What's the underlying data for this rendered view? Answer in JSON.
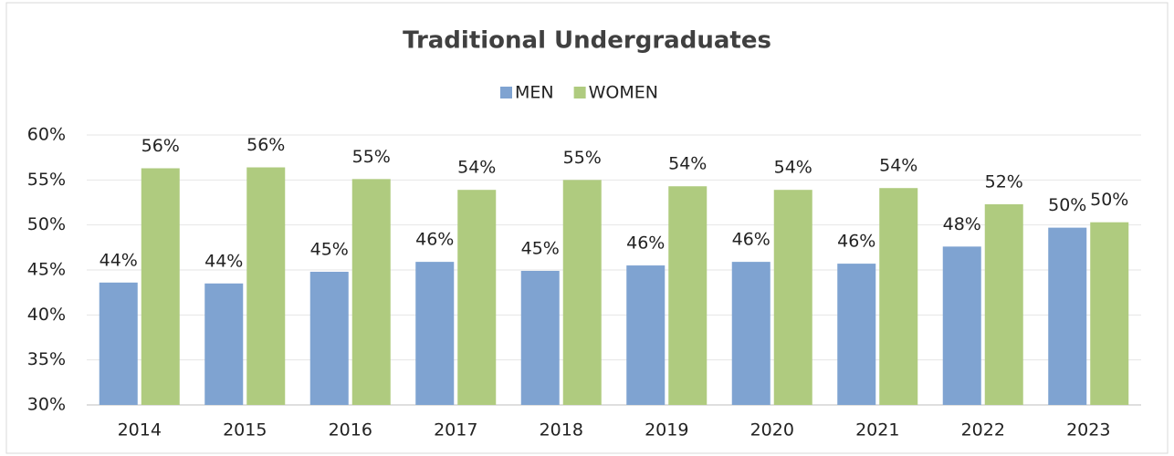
{
  "chart_data": {
    "type": "bar",
    "title": "Traditional Undergraduates",
    "categories": [
      "2014",
      "2015",
      "2016",
      "2017",
      "2018",
      "2019",
      "2020",
      "2021",
      "2022",
      "2023"
    ],
    "series": [
      {
        "name": "MEN",
        "color": "#7fa3d1",
        "values": [
          43.6,
          43.5,
          44.8,
          45.9,
          44.9,
          45.5,
          45.9,
          45.7,
          47.6,
          49.7
        ],
        "value_labels": [
          "44%",
          "44%",
          "45%",
          "46%",
          "45%",
          "46%",
          "46%",
          "46%",
          "48%",
          "50%"
        ]
      },
      {
        "name": "WOMEN",
        "color": "#afcb7f",
        "values": [
          56.3,
          56.4,
          55.1,
          53.9,
          55.0,
          54.3,
          53.9,
          54.1,
          52.3,
          50.3
        ],
        "value_labels": [
          "56%",
          "56%",
          "55%",
          "54%",
          "55%",
          "54%",
          "54%",
          "54%",
          "52%",
          "50%"
        ]
      }
    ],
    "ylim": [
      30,
      60
    ],
    "yticks": [
      {
        "value": 30,
        "label": "30%"
      },
      {
        "value": 35,
        "label": "35%"
      },
      {
        "value": 40,
        "label": "40%"
      },
      {
        "value": 45,
        "label": "45%"
      },
      {
        "value": 50,
        "label": "50%"
      },
      {
        "value": 55,
        "label": "55%"
      },
      {
        "value": 60,
        "label": "60%"
      }
    ],
    "grid": true,
    "legend": "top"
  }
}
